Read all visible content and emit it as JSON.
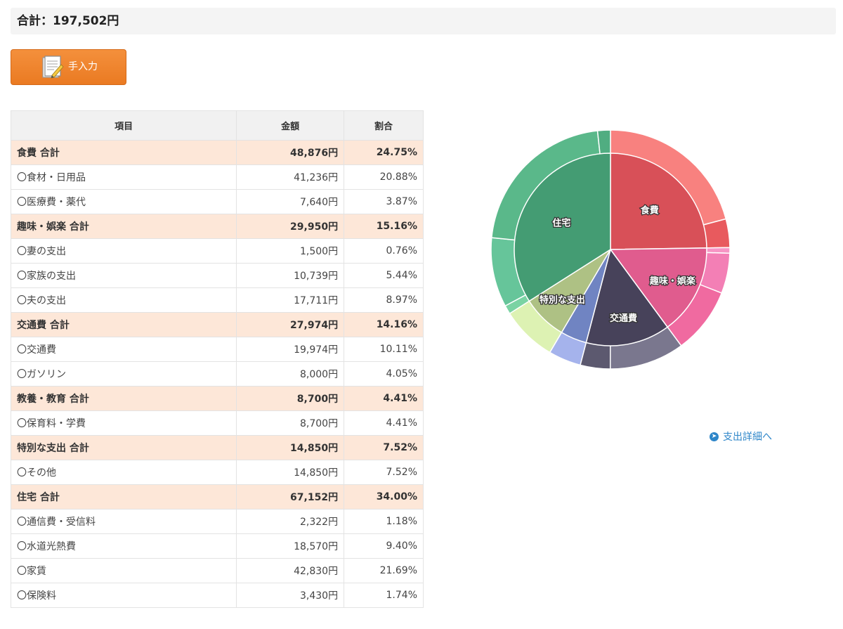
{
  "summary": {
    "total_text": "合計：197,502円"
  },
  "manual_button": {
    "label": "手入力",
    "icon": "document-pencil-icon"
  },
  "table": {
    "headers": {
      "item": "項目",
      "amount": "金額",
      "ratio": "割合"
    },
    "rows": [
      {
        "type": "category",
        "name": "食費 合計",
        "amount": "48,876円",
        "ratio": "24.75%"
      },
      {
        "type": "item",
        "name": "〇食材・日用品",
        "amount": "41,236円",
        "ratio": "20.88%"
      },
      {
        "type": "item",
        "name": "〇医療費・薬代",
        "amount": "7,640円",
        "ratio": "3.87%"
      },
      {
        "type": "category",
        "name": "趣味・娯楽 合計",
        "amount": "29,950円",
        "ratio": "15.16%"
      },
      {
        "type": "item",
        "name": "〇妻の支出",
        "amount": "1,500円",
        "ratio": "0.76%"
      },
      {
        "type": "item",
        "name": "〇家族の支出",
        "amount": "10,739円",
        "ratio": "5.44%"
      },
      {
        "type": "item",
        "name": "〇夫の支出",
        "amount": "17,711円",
        "ratio": "8.97%"
      },
      {
        "type": "category",
        "name": "交通費 合計",
        "amount": "27,974円",
        "ratio": "14.16%"
      },
      {
        "type": "item",
        "name": "〇交通費",
        "amount": "19,974円",
        "ratio": "10.11%"
      },
      {
        "type": "item",
        "name": "〇ガソリン",
        "amount": "8,000円",
        "ratio": "4.05%"
      },
      {
        "type": "category",
        "name": "教養・教育 合計",
        "amount": "8,700円",
        "ratio": "4.41%"
      },
      {
        "type": "item",
        "name": "〇保育料・学費",
        "amount": "8,700円",
        "ratio": "4.41%"
      },
      {
        "type": "category",
        "name": "特別な支出 合計",
        "amount": "14,850円",
        "ratio": "7.52%"
      },
      {
        "type": "item",
        "name": "〇その他",
        "amount": "14,850円",
        "ratio": "7.52%"
      },
      {
        "type": "category",
        "name": "住宅 合計",
        "amount": "67,152円",
        "ratio": "34.00%"
      },
      {
        "type": "item",
        "name": "〇通信費・受信料",
        "amount": "2,322円",
        "ratio": "1.18%"
      },
      {
        "type": "item",
        "name": "〇水道光熱費",
        "amount": "18,570円",
        "ratio": "9.40%"
      },
      {
        "type": "item",
        "name": "〇家賃",
        "amount": "42,830円",
        "ratio": "21.69%"
      },
      {
        "type": "item",
        "name": "〇保険料",
        "amount": "3,430円",
        "ratio": "1.74%"
      }
    ]
  },
  "chart_data": {
    "type": "pie",
    "title": "",
    "categories": [
      {
        "name": "食費",
        "value": 48876,
        "color": "#d85058",
        "show_label": true,
        "sub": [
          {
            "name": "食材・日用品",
            "value": 41236,
            "color": "#f8817f"
          },
          {
            "name": "医療費・薬代",
            "value": 7640,
            "color": "#e85a5e"
          }
        ]
      },
      {
        "name": "趣味・娯楽",
        "value": 29950,
        "color": "#e05c8e",
        "show_label": true,
        "sub": [
          {
            "name": "妻の支出",
            "value": 1500,
            "color": "#f794c4"
          },
          {
            "name": "家族の支出",
            "value": 10739,
            "color": "#f37fb5"
          },
          {
            "name": "夫の支出",
            "value": 17711,
            "color": "#f06aa0"
          }
        ]
      },
      {
        "name": "交通費",
        "value": 27974,
        "color": "#47425a",
        "show_label": true,
        "sub": [
          {
            "name": "交通費",
            "value": 19974,
            "color": "#7a778e"
          },
          {
            "name": "ガソリン",
            "value": 8000,
            "color": "#5c596f"
          }
        ]
      },
      {
        "name": "教養・教育",
        "value": 8700,
        "color": "#7084c2",
        "show_label": false,
        "sub": [
          {
            "name": "保育料・学費",
            "value": 8700,
            "color": "#a5b3ec"
          }
        ]
      },
      {
        "name": "特別な支出",
        "value": 14850,
        "color": "#aec184",
        "show_label": true,
        "sub": [
          {
            "name": "その他",
            "value": 14850,
            "color": "#ddf2b3"
          }
        ]
      },
      {
        "name": "住宅",
        "value": 67152,
        "color": "#449c73",
        "show_label": true,
        "sub": [
          {
            "name": "通信費・受信料",
            "value": 2322,
            "color": "#7ad3a3"
          },
          {
            "name": "水道光熱費",
            "value": 18570,
            "color": "#66c59a"
          },
          {
            "name": "家賃",
            "value": 42830,
            "color": "#5ab88a"
          },
          {
            "name": "保険料",
            "value": 3430,
            "color": "#50ad81"
          }
        ]
      }
    ]
  },
  "detail_link": {
    "label": "支出詳細へ",
    "icon": "arrow-circle-right-icon"
  }
}
